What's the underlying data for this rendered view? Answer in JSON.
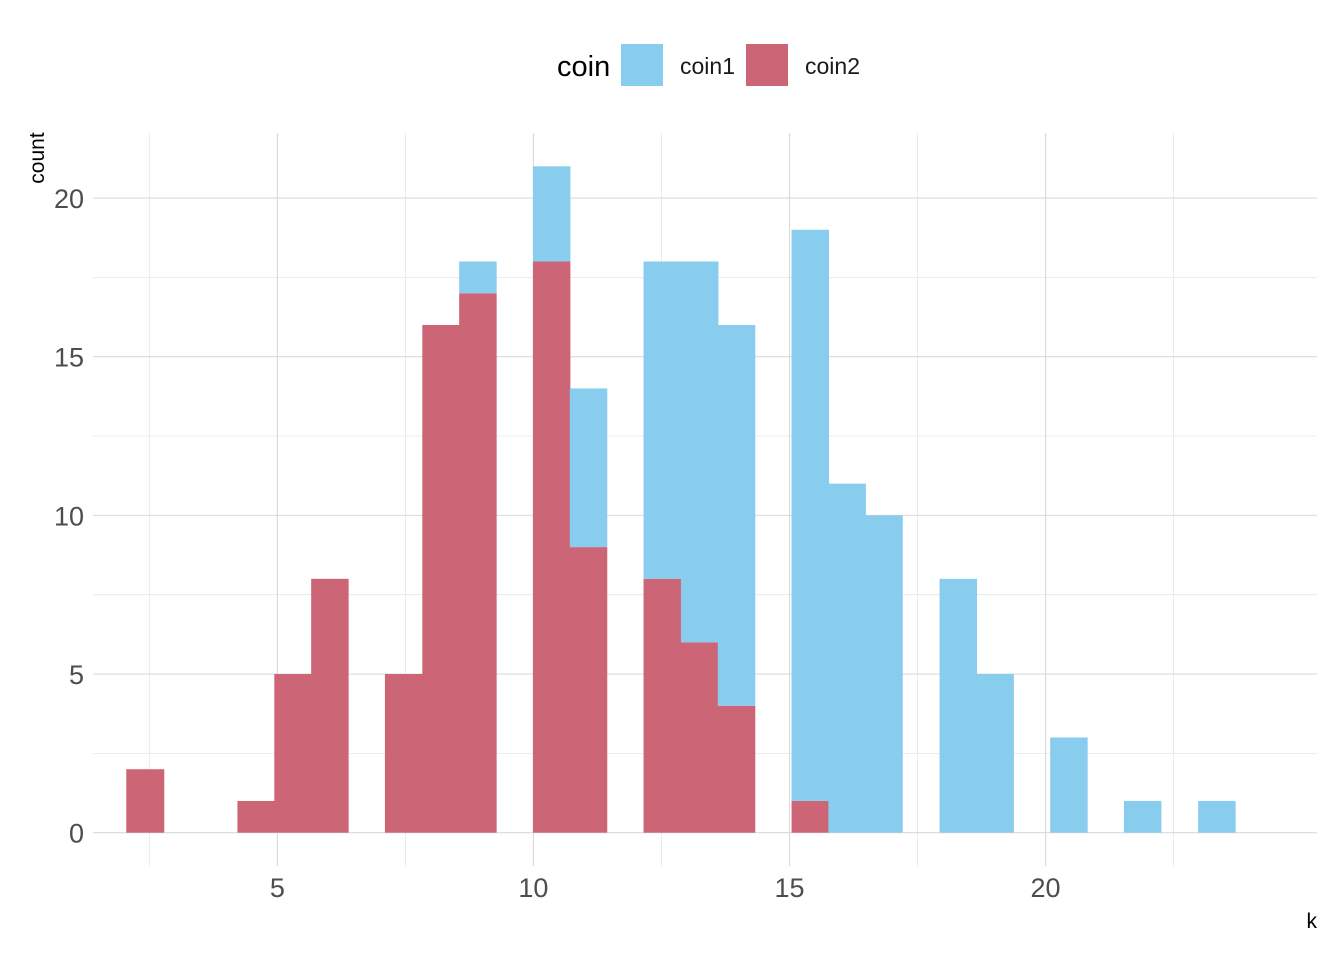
{
  "chart_data": {
    "type": "bar",
    "stacked": true,
    "title": "",
    "xlabel": "k",
    "ylabel": "count",
    "xlim": [
      1.4,
      25.3
    ],
    "ylim": [
      -1.05,
      22.05
    ],
    "x_ticks": [
      5,
      10,
      15,
      20
    ],
    "x_tick_labels": [
      "5",
      "10",
      "15",
      "20"
    ],
    "y_ticks": [
      0,
      5,
      10,
      15,
      20
    ],
    "y_tick_labels": [
      "0",
      "5",
      "10",
      "15",
      "20"
    ],
    "x_minor_ticks": [
      2.5,
      7.5,
      12.5,
      17.5,
      22.5
    ],
    "y_minor_ticks": [
      2.5,
      7.5,
      12.5,
      17.5
    ],
    "grid": true,
    "legend": {
      "title": "coin",
      "position": "top"
    },
    "bin_edges": [
      2.05,
      2.78,
      3.5,
      4.22,
      4.94,
      5.66,
      6.38,
      7.1,
      7.83,
      8.55,
      9.27,
      9.99,
      10.71,
      11.43,
      12.15,
      12.88,
      13.6,
      14.32,
      15.04,
      15.76,
      16.48,
      17.2,
      17.93,
      18.65,
      19.37,
      20.09,
      20.81,
      21.53,
      22.25,
      22.98,
      23.7
    ],
    "series": [
      {
        "name": "coin1",
        "color": "#88CCEE",
        "values": [
          0,
          0,
          0,
          0,
          0,
          0,
          0,
          0,
          0,
          1,
          0,
          3,
          5,
          0,
          10,
          12,
          12,
          0,
          18,
          11,
          10,
          0,
          8,
          5,
          0,
          3,
          0,
          1,
          0,
          1
        ]
      },
      {
        "name": "coin2",
        "color": "#CC6677",
        "values": [
          2,
          0,
          0,
          1,
          5,
          8,
          0,
          5,
          16,
          17,
          0,
          18,
          9,
          0,
          8,
          6,
          4,
          0,
          1,
          0,
          0,
          0,
          0,
          0,
          0,
          0,
          0,
          0,
          0,
          0
        ]
      }
    ]
  }
}
